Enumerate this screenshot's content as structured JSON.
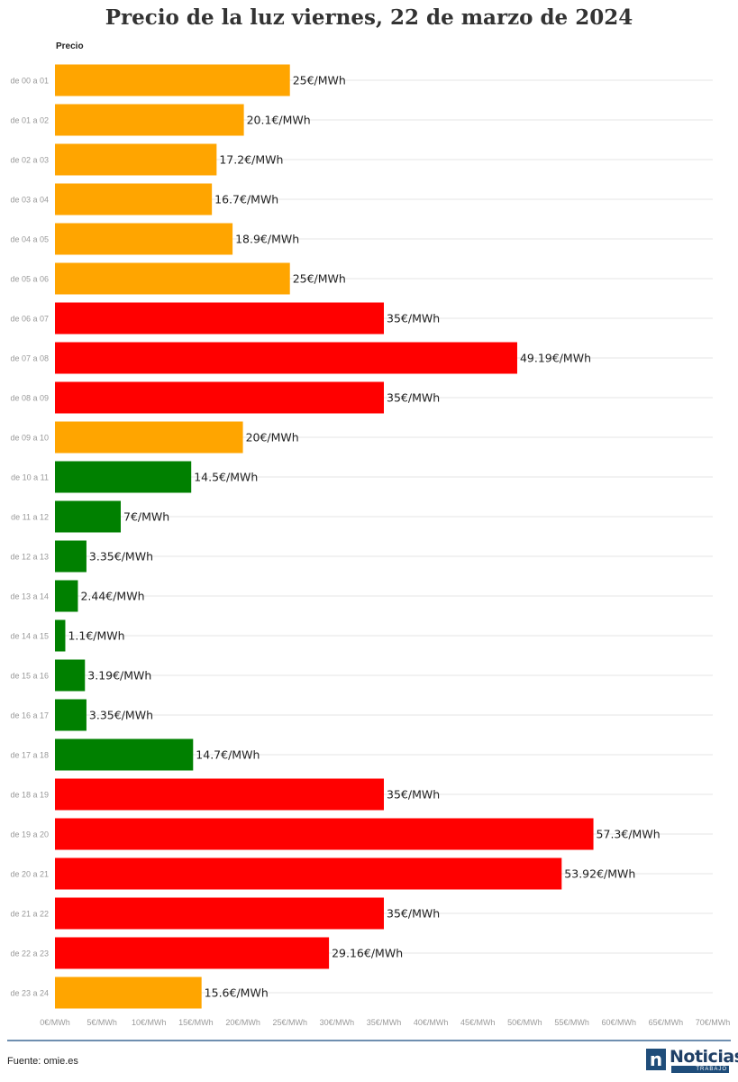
{
  "title": "Precio de la luz viernes, 22 de marzo de 2024",
  "source": "Fuente: omie.es",
  "logo": {
    "mark": "n",
    "word": "Noticias",
    "sub": "TRABAJO"
  },
  "colors": {
    "high": "#ff0000",
    "medium": "#ffa500",
    "low": "#008000",
    "grid": "#e6e6e6",
    "tick": "#9a9a9a"
  },
  "chart_data": {
    "type": "bar",
    "orientation": "horizontal",
    "title": "Precio de la luz viernes, 22 de marzo de 2024",
    "series_label": "Precio",
    "categories": [
      "de 00 a 01",
      "de 01 a 02",
      "de 02 a 03",
      "de 03 a 04",
      "de 04 a 05",
      "de 05 a 06",
      "de 06 a 07",
      "de 07 a 08",
      "de 08 a 09",
      "de 09 a 10",
      "de 10 a 11",
      "de 11 a 12",
      "de 12 a 13",
      "de 13 a 14",
      "de 14 a 15",
      "de 15 a 16",
      "de 16 a 17",
      "de 17 a 18",
      "de 18 a 19",
      "de 19 a 20",
      "de 20 a 21",
      "de 21 a 22",
      "de 22 a 23",
      "de 23 a 24"
    ],
    "values": [
      25,
      20.1,
      17.2,
      16.7,
      18.9,
      25,
      35,
      49.19,
      35,
      20,
      14.5,
      7,
      3.35,
      2.44,
      1.1,
      3.19,
      3.35,
      14.7,
      35,
      57.3,
      53.92,
      35,
      29.16,
      15.6
    ],
    "value_labels": [
      "25€/MWh",
      "20.1€/MWh",
      "17.2€/MWh",
      "16.7€/MWh",
      "18.9€/MWh",
      "25€/MWh",
      "35€/MWh",
      "49.19€/MWh",
      "35€/MWh",
      "20€/MWh",
      "14.5€/MWh",
      "7€/MWh",
      "3.35€/MWh",
      "2.44€/MWh",
      "1.1€/MWh",
      "3.19€/MWh",
      "3.35€/MWh",
      "14.7€/MWh",
      "35€/MWh",
      "57.3€/MWh",
      "53.92€/MWh",
      "35€/MWh",
      "29.16€/MWh",
      "15.6€/MWh"
    ],
    "levels": [
      "medium",
      "medium",
      "medium",
      "medium",
      "medium",
      "medium",
      "high",
      "high",
      "high",
      "medium",
      "low",
      "low",
      "low",
      "low",
      "low",
      "low",
      "low",
      "low",
      "high",
      "high",
      "high",
      "high",
      "high",
      "medium"
    ],
    "xlim": [
      0,
      70
    ],
    "x_ticks": [
      0,
      5,
      10,
      15,
      20,
      25,
      30,
      35,
      40,
      45,
      50,
      55,
      60,
      65,
      70
    ],
    "x_tick_labels": [
      "0€/MWh",
      "5€/MWh",
      "10€/MWh",
      "15€/MWh",
      "20€/MWh",
      "25€/MWh",
      "30€/MWh",
      "35€/MWh",
      "40€/MWh",
      "45€/MWh",
      "50€/MWh",
      "55€/MWh",
      "60€/MWh",
      "65€/MWh",
      "70€/MWh"
    ],
    "grid": true
  }
}
